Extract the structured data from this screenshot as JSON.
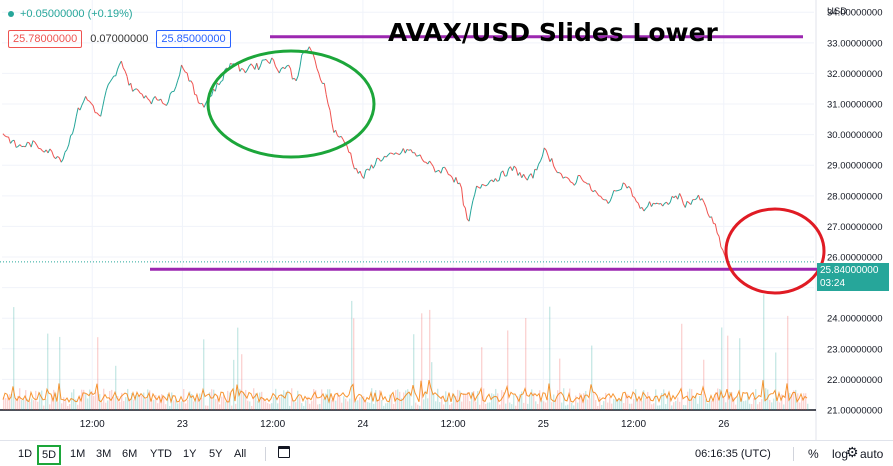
{
  "header": {
    "change_text": "+0.05000000 (+0.19%)",
    "bid": "25.78000000",
    "spread": "0.07000000",
    "ask": "25.85000000",
    "title": "AVAX/USD Slides Lower",
    "currency": "USD"
  },
  "current_price": {
    "value": "25.84000000",
    "countdown": "03:24",
    "color": "#26a69a"
  },
  "toolbar": {
    "ranges": [
      "1D",
      "5D",
      "1M",
      "3M",
      "6M",
      "YTD",
      "1Y",
      "5Y",
      "All"
    ],
    "active_range": "5D",
    "time": "06:16:35 (UTC)",
    "percent_label": "%",
    "log_label": "log",
    "auto_label": "auto",
    "calendar_icon": "calendar-range-icon",
    "settings_icon": "gear-icon"
  },
  "chart_data": {
    "type": "line",
    "title": "AVAX/USD Slides Lower",
    "ylabel": "USD",
    "ylim": [
      21.0,
      34.4
    ],
    "y_ticks": [
      "34.00000000",
      "33.00000000",
      "32.00000000",
      "31.00000000",
      "30.00000000",
      "29.00000000",
      "28.00000000",
      "27.00000000",
      "26.00000000",
      "25.00000000",
      "24.00000000",
      "23.00000000",
      "22.00000000",
      "21.00000000"
    ],
    "x_tick_labels": [
      "12:00",
      "23",
      "12:00",
      "24",
      "12:00",
      "25",
      "12:00",
      "26"
    ],
    "x_tick_hours": [
      12,
      24,
      36,
      48,
      60,
      72,
      84,
      96
    ],
    "x_range_hours": [
      0,
      108
    ],
    "series": [
      {
        "points": [
          [
            0,
            30.1
          ],
          [
            2,
            29.6
          ],
          [
            4,
            29.7
          ],
          [
            6,
            29.5
          ],
          [
            8,
            29.2
          ],
          [
            9,
            29.8
          ],
          [
            10,
            30.7
          ],
          [
            11,
            31.2
          ],
          [
            12,
            31.0
          ],
          [
            13,
            30.5
          ],
          [
            14,
            31.5
          ],
          [
            15,
            31.9
          ],
          [
            16,
            32.4
          ],
          [
            17,
            31.6
          ],
          [
            18,
            31.4
          ],
          [
            19,
            31.3
          ],
          [
            20,
            31.1
          ],
          [
            21,
            31.2
          ],
          [
            22,
            31.0
          ],
          [
            23,
            31.6
          ],
          [
            24,
            32.3
          ],
          [
            25,
            31.8
          ],
          [
            26,
            31.1
          ],
          [
            27,
            31.0
          ],
          [
            28,
            31.4
          ],
          [
            29,
            31.7
          ],
          [
            30,
            32.2
          ],
          [
            31,
            32.4
          ],
          [
            32,
            32.0
          ],
          [
            33,
            32.3
          ],
          [
            34,
            32.2
          ],
          [
            35,
            32.5
          ],
          [
            36,
            32.4
          ],
          [
            37,
            32.1
          ],
          [
            38,
            32.3
          ],
          [
            39,
            31.7
          ],
          [
            40,
            32.6
          ],
          [
            41,
            32.9
          ],
          [
            42,
            32.0
          ],
          [
            43,
            31.6
          ],
          [
            44,
            30.2
          ],
          [
            45,
            29.9
          ],
          [
            46,
            29.6
          ],
          [
            47,
            28.9
          ],
          [
            48,
            28.6
          ],
          [
            50,
            29.2
          ],
          [
            52,
            29.3
          ],
          [
            54,
            29.5
          ],
          [
            56,
            29.2
          ],
          [
            58,
            28.8
          ],
          [
            59,
            28.9
          ],
          [
            60,
            28.6
          ],
          [
            61,
            28.3
          ],
          [
            62,
            27.0
          ],
          [
            63,
            28.2
          ],
          [
            64,
            28.4
          ],
          [
            66,
            28.6
          ],
          [
            68,
            28.9
          ],
          [
            70,
            28.5
          ],
          [
            71,
            28.8
          ],
          [
            72,
            29.5
          ],
          [
            73,
            29.2
          ],
          [
            74,
            28.8
          ],
          [
            75,
            28.5
          ],
          [
            76,
            28.4
          ],
          [
            77,
            28.7
          ],
          [
            78,
            28.3
          ],
          [
            79,
            28.1
          ],
          [
            80,
            27.8
          ],
          [
            81,
            27.9
          ],
          [
            82,
            28.3
          ],
          [
            83,
            28.4
          ],
          [
            84,
            28.0
          ],
          [
            85,
            27.5
          ],
          [
            86,
            27.7
          ],
          [
            87,
            27.8
          ],
          [
            88,
            27.6
          ],
          [
            89,
            27.9
          ],
          [
            90,
            28.0
          ],
          [
            91,
            27.7
          ],
          [
            92,
            27.9
          ],
          [
            93,
            27.9
          ],
          [
            94,
            27.4
          ],
          [
            95,
            26.9
          ],
          [
            96,
            26.1
          ],
          [
            96.5,
            25.84
          ]
        ]
      }
    ],
    "volume_note": "volume bars in lower pane with orange moving-average line",
    "annotations": {
      "upper_line_value": 33.2,
      "lower_line_value": 25.6,
      "line_color": "#9c27b0",
      "green_circle_color": "#1ca63a",
      "red_circle_color": "#e01b24"
    },
    "up_color": "#26a69a",
    "down_color": "#ef5350",
    "grid": true
  }
}
